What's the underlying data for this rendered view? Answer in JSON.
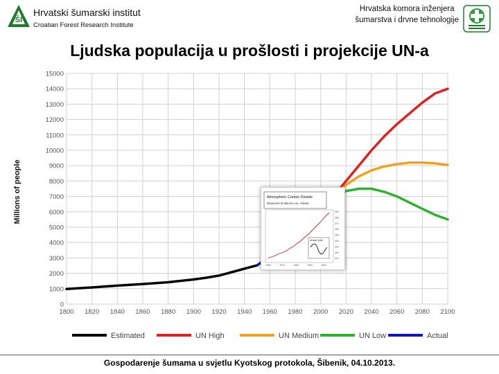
{
  "header": {
    "institute_name": "Hrvatski šumarski institut",
    "institute_subtitle": "Croatian Forest Research Institute",
    "chamber_line1": "Hrvatska komora inženjera",
    "chamber_line2": "šumarstva i drvne tehnologije"
  },
  "title": "Ljudska populacija u prošlosti i projekcije UN-a",
  "footer": "Gospodarenje šumama u svjetlu Kyotskog protokola, Šibenik, 04.10.2013.",
  "colors": {
    "estimated": "#000000",
    "un_high": "#dd2020",
    "un_medium": "#f0a020",
    "un_low": "#30b030",
    "actual": "#1010c0",
    "logo_green": "#1f7a2e"
  },
  "chart_data": {
    "type": "line",
    "ylabel": "Millions of people",
    "xlim": [
      1800,
      2100
    ],
    "ylim": [
      0,
      15000
    ],
    "x_ticks": [
      "1800",
      "1820",
      "1840",
      "1860",
      "1880",
      "1900",
      "1920",
      "1940",
      "1960",
      "1980",
      "2000",
      "2020",
      "2040",
      "2060",
      "2080",
      "2100"
    ],
    "y_ticks": [
      "0",
      "1000",
      "2000",
      "3000",
      "4000",
      "5000",
      "6000",
      "7000",
      "8000",
      "9000",
      "10000",
      "11000",
      "12000",
      "13000",
      "14000",
      "15000"
    ],
    "legend_position": "bottom",
    "series": [
      {
        "name": "Estimated",
        "color": "#000000",
        "x": [
          1800,
          1820,
          1840,
          1860,
          1880,
          1900,
          1910,
          1920,
          1930,
          1940,
          1950
        ],
        "y": [
          980,
          1080,
          1200,
          1300,
          1420,
          1600,
          1710,
          1850,
          2070,
          2300,
          2520
        ]
      },
      {
        "name": "UN High",
        "color": "#dd2020",
        "x": [
          2015,
          2020,
          2030,
          2040,
          2050,
          2060,
          2070,
          2080,
          2090,
          2100
        ],
        "y": [
          7500,
          8000,
          9000,
          10000,
          10900,
          11700,
          12400,
          13100,
          13700,
          14000
        ]
      },
      {
        "name": "UN Medium",
        "color": "#f0a020",
        "x": [
          2015,
          2020,
          2030,
          2040,
          2050,
          2060,
          2070,
          2080,
          2090,
          2100
        ],
        "y": [
          7400,
          7750,
          8300,
          8700,
          8950,
          9100,
          9200,
          9200,
          9150,
          9050
        ]
      },
      {
        "name": "UN Low",
        "color": "#30b030",
        "x": [
          2015,
          2020,
          2030,
          2040,
          2050,
          2060,
          2070,
          2080,
          2090,
          2100
        ],
        "y": [
          7100,
          7350,
          7500,
          7500,
          7300,
          7000,
          6600,
          6200,
          5800,
          5500
        ]
      },
      {
        "name": "Actual",
        "color": "#1010c0",
        "x": [
          1950,
          1953
        ],
        "y": [
          2520,
          2700
        ]
      }
    ]
  },
  "inset": {
    "title_line1": "Atmospheric Carbon Dioxide",
    "title_line2": "Measured at Mauna Loa, Hawaii",
    "x_ticks": [
      "1960",
      "1970",
      "1980",
      "1990",
      "2000"
    ],
    "y_ticks": [
      "390",
      "380",
      "370",
      "360",
      "350",
      "340",
      "330",
      "320",
      "310"
    ],
    "seasonal_box_label": "Annual Cycle",
    "series_color": "#cc2020",
    "line_color": "#000000"
  }
}
